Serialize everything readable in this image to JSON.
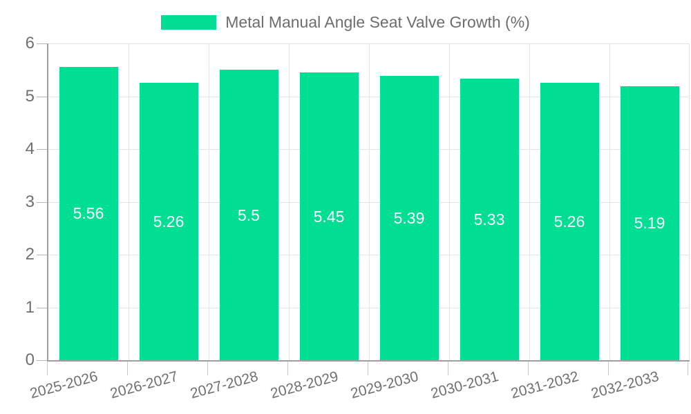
{
  "legend": {
    "swatch_color": "#00DE94",
    "label": "Metal Manual Angle Seat Valve Growth (%)"
  },
  "chart_data": {
    "type": "bar",
    "title": "Metal Manual Angle Seat Valve Growth (%)",
    "legend_entries": [
      "Metal Manual Angle Seat Valve Growth (%)"
    ],
    "legend_position": "top",
    "categories": [
      "2025-2026",
      "2026-2027",
      "2027-2028",
      "2028-2029",
      "2029-2030",
      "2030-2031",
      "2031-2032",
      "2032-2033"
    ],
    "series": [
      {
        "name": "Metal Manual Angle Seat Valve Growth (%)",
        "values": [
          5.56,
          5.26,
          5.5,
          5.45,
          5.39,
          5.33,
          5.26,
          5.19
        ],
        "value_labels": [
          "5.56",
          "5.26",
          "5.5",
          "5.45",
          "5.39",
          "5.33",
          "5.26",
          "5.19"
        ]
      }
    ],
    "xlabel": "",
    "ylabel": "",
    "ylim": [
      0,
      6
    ],
    "yticks": [
      0,
      1,
      2,
      3,
      4,
      5,
      6
    ],
    "grid": true,
    "bar_color": "#00DE94",
    "value_label_color": "#ffffff",
    "axis_text_color": "#6f6f6f",
    "gridline_color": "#e4e4e4",
    "axis_line_color": "#9e9e9e"
  }
}
